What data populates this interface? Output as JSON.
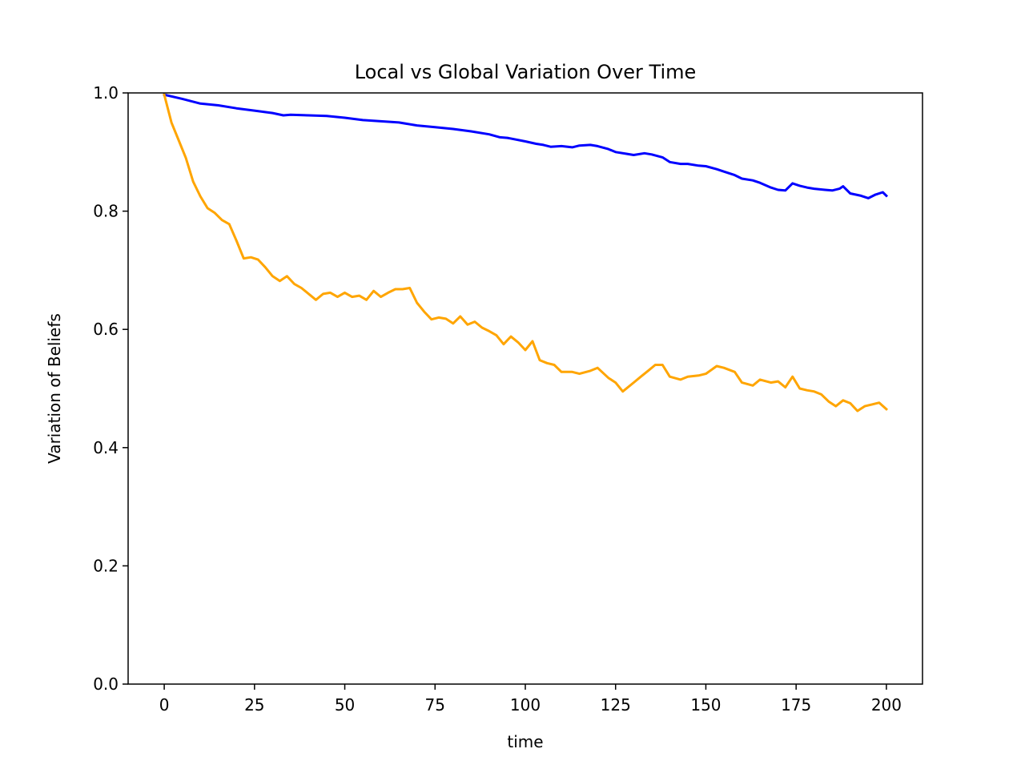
{
  "chart_data": {
    "type": "line",
    "title": "Local vs Global Variation Over Time",
    "xlabel": "time",
    "ylabel": "Variation of Beliefs",
    "xlim": [
      -10,
      210
    ],
    "ylim": [
      0.0,
      1.0
    ],
    "x_ticks": [
      0,
      25,
      50,
      75,
      100,
      125,
      150,
      175,
      200
    ],
    "x_tick_labels": [
      "0",
      "25",
      "50",
      "75",
      "100",
      "125",
      "150",
      "175",
      "200"
    ],
    "y_ticks": [
      0.0,
      0.2,
      0.4,
      0.6,
      0.8,
      1.0
    ],
    "y_tick_labels": [
      "0.0",
      "0.2",
      "0.4",
      "0.6",
      "0.8",
      "1.0"
    ],
    "grid": false,
    "legend": false,
    "series": [
      {
        "color": "#0000ff",
        "points": [
          [
            0,
            0.997
          ],
          [
            5,
            0.99
          ],
          [
            10,
            0.982
          ],
          [
            15,
            0.979
          ],
          [
            20,
            0.974
          ],
          [
            25,
            0.97
          ],
          [
            30,
            0.966
          ],
          [
            33,
            0.962
          ],
          [
            35,
            0.963
          ],
          [
            40,
            0.962
          ],
          [
            45,
            0.961
          ],
          [
            50,
            0.958
          ],
          [
            55,
            0.954
          ],
          [
            60,
            0.952
          ],
          [
            65,
            0.95
          ],
          [
            70,
            0.945
          ],
          [
            75,
            0.942
          ],
          [
            80,
            0.939
          ],
          [
            85,
            0.935
          ],
          [
            90,
            0.93
          ],
          [
            93,
            0.925
          ],
          [
            95,
            0.924
          ],
          [
            100,
            0.918
          ],
          [
            103,
            0.914
          ],
          [
            105,
            0.912
          ],
          [
            107,
            0.909
          ],
          [
            110,
            0.91
          ],
          [
            113,
            0.908
          ],
          [
            115,
            0.911
          ],
          [
            118,
            0.912
          ],
          [
            120,
            0.91
          ],
          [
            123,
            0.905
          ],
          [
            125,
            0.9
          ],
          [
            128,
            0.897
          ],
          [
            130,
            0.895
          ],
          [
            133,
            0.898
          ],
          [
            135,
            0.896
          ],
          [
            138,
            0.891
          ],
          [
            140,
            0.883
          ],
          [
            143,
            0.88
          ],
          [
            145,
            0.88
          ],
          [
            148,
            0.877
          ],
          [
            150,
            0.876
          ],
          [
            153,
            0.871
          ],
          [
            155,
            0.867
          ],
          [
            158,
            0.861
          ],
          [
            160,
            0.855
          ],
          [
            163,
            0.852
          ],
          [
            165,
            0.848
          ],
          [
            168,
            0.84
          ],
          [
            170,
            0.836
          ],
          [
            172,
            0.835
          ],
          [
            174,
            0.847
          ],
          [
            176,
            0.843
          ],
          [
            178,
            0.84
          ],
          [
            180,
            0.838
          ],
          [
            183,
            0.836
          ],
          [
            185,
            0.835
          ],
          [
            187,
            0.838
          ],
          [
            188,
            0.842
          ],
          [
            190,
            0.83
          ],
          [
            193,
            0.826
          ],
          [
            195,
            0.822
          ],
          [
            197,
            0.828
          ],
          [
            199,
            0.832
          ],
          [
            200,
            0.826
          ]
        ]
      },
      {
        "color": "#ffa500",
        "points": [
          [
            0,
            0.997
          ],
          [
            2,
            0.95
          ],
          [
            4,
            0.92
          ],
          [
            6,
            0.89
          ],
          [
            8,
            0.85
          ],
          [
            10,
            0.825
          ],
          [
            12,
            0.805
          ],
          [
            14,
            0.797
          ],
          [
            16,
            0.785
          ],
          [
            18,
            0.778
          ],
          [
            20,
            0.75
          ],
          [
            22,
            0.72
          ],
          [
            24,
            0.722
          ],
          [
            26,
            0.718
          ],
          [
            28,
            0.705
          ],
          [
            30,
            0.69
          ],
          [
            32,
            0.682
          ],
          [
            34,
            0.69
          ],
          [
            36,
            0.677
          ],
          [
            38,
            0.67
          ],
          [
            40,
            0.66
          ],
          [
            42,
            0.65
          ],
          [
            44,
            0.66
          ],
          [
            46,
            0.662
          ],
          [
            48,
            0.655
          ],
          [
            50,
            0.662
          ],
          [
            52,
            0.655
          ],
          [
            54,
            0.657
          ],
          [
            56,
            0.65
          ],
          [
            58,
            0.665
          ],
          [
            60,
            0.655
          ],
          [
            62,
            0.662
          ],
          [
            64,
            0.668
          ],
          [
            66,
            0.668
          ],
          [
            68,
            0.67
          ],
          [
            70,
            0.645
          ],
          [
            72,
            0.63
          ],
          [
            74,
            0.617
          ],
          [
            76,
            0.62
          ],
          [
            78,
            0.618
          ],
          [
            80,
            0.61
          ],
          [
            82,
            0.622
          ],
          [
            84,
            0.608
          ],
          [
            86,
            0.613
          ],
          [
            88,
            0.603
          ],
          [
            90,
            0.597
          ],
          [
            92,
            0.59
          ],
          [
            94,
            0.575
          ],
          [
            96,
            0.588
          ],
          [
            98,
            0.578
          ],
          [
            100,
            0.565
          ],
          [
            102,
            0.58
          ],
          [
            104,
            0.548
          ],
          [
            106,
            0.543
          ],
          [
            108,
            0.54
          ],
          [
            110,
            0.528
          ],
          [
            113,
            0.528
          ],
          [
            115,
            0.525
          ],
          [
            118,
            0.53
          ],
          [
            120,
            0.535
          ],
          [
            123,
            0.518
          ],
          [
            125,
            0.51
          ],
          [
            127,
            0.495
          ],
          [
            130,
            0.51
          ],
          [
            132,
            0.52
          ],
          [
            134,
            0.53
          ],
          [
            136,
            0.54
          ],
          [
            138,
            0.54
          ],
          [
            140,
            0.52
          ],
          [
            143,
            0.515
          ],
          [
            145,
            0.52
          ],
          [
            148,
            0.522
          ],
          [
            150,
            0.525
          ],
          [
            153,
            0.538
          ],
          [
            155,
            0.535
          ],
          [
            158,
            0.528
          ],
          [
            160,
            0.51
          ],
          [
            163,
            0.505
          ],
          [
            165,
            0.515
          ],
          [
            168,
            0.51
          ],
          [
            170,
            0.512
          ],
          [
            172,
            0.502
          ],
          [
            174,
            0.52
          ],
          [
            176,
            0.5
          ],
          [
            178,
            0.497
          ],
          [
            180,
            0.495
          ],
          [
            182,
            0.49
          ],
          [
            184,
            0.478
          ],
          [
            186,
            0.47
          ],
          [
            188,
            0.48
          ],
          [
            190,
            0.475
          ],
          [
            192,
            0.462
          ],
          [
            194,
            0.47
          ],
          [
            196,
            0.473
          ],
          [
            198,
            0.476
          ],
          [
            200,
            0.465
          ]
        ]
      }
    ]
  }
}
